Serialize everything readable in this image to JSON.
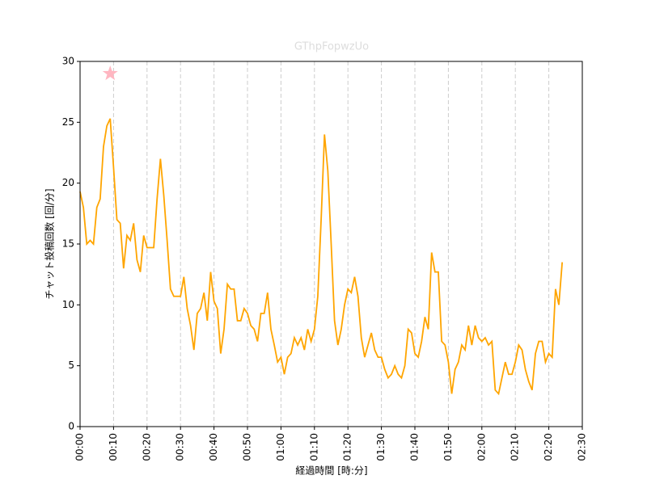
{
  "chart_data": {
    "type": "line",
    "title": "GThpFopwzUo",
    "xlabel": "経過時間 [時:分]",
    "ylabel": "チャット投稿回数 [回/分]",
    "x": [
      0,
      1,
      2,
      3,
      4,
      5,
      6,
      7,
      8,
      9,
      10,
      11,
      12,
      13,
      14,
      15,
      16,
      17,
      18,
      19,
      20,
      21,
      22,
      23,
      24,
      25,
      26,
      27,
      28,
      29,
      30,
      31,
      32,
      33,
      34,
      35,
      36,
      37,
      38,
      39,
      40,
      41,
      42,
      43,
      44,
      45,
      46,
      47,
      48,
      49,
      50,
      51,
      52,
      53,
      54,
      55,
      56,
      57,
      58,
      59,
      60,
      61,
      62,
      63,
      64,
      65,
      66,
      67,
      68,
      69,
      70,
      71,
      72,
      73,
      74,
      75,
      76,
      77,
      78,
      79,
      80,
      81,
      82,
      83,
      84,
      85,
      86,
      87,
      88,
      89,
      90,
      91,
      92,
      93,
      94,
      95,
      96,
      97,
      98,
      99,
      100,
      101,
      102,
      103,
      104,
      105,
      106,
      107,
      108,
      109,
      110,
      111,
      112,
      113,
      114,
      115,
      116,
      117,
      118,
      119,
      120,
      121,
      122,
      123,
      124,
      125,
      126,
      127,
      128,
      129,
      130,
      131,
      132,
      133,
      134,
      135,
      136,
      137,
      138,
      139,
      140,
      141,
      142,
      143,
      144
    ],
    "series": [
      {
        "name": "チャット投稿回数",
        "color": "#ffa500",
        "values": [
          19.3,
          18,
          15,
          15.3,
          15,
          18,
          18.7,
          23,
          24.7,
          25.3,
          21.3,
          17,
          16.7,
          13,
          15.7,
          15.3,
          16.7,
          13.7,
          12.7,
          15.7,
          14.7,
          14.7,
          14.7,
          18.7,
          22,
          19,
          15.3,
          11.3,
          10.7,
          10.7,
          10.7,
          12.3,
          9.7,
          8.3,
          6.3,
          9.3,
          9.7,
          11,
          8.7,
          12.7,
          10.3,
          9.7,
          6,
          8,
          11.7,
          11.3,
          11.3,
          8.7,
          8.7,
          9.7,
          9.3,
          8.3,
          8,
          7,
          9.3,
          9.3,
          11,
          8,
          6.7,
          5.3,
          5.7,
          4.3,
          5.7,
          6,
          7.3,
          6.7,
          7.3,
          6.3,
          8,
          7,
          8,
          10.7,
          17,
          24,
          21,
          15,
          8.7,
          6.7,
          8,
          10,
          11.3,
          11,
          12.3,
          10.7,
          7.3,
          5.7,
          6.7,
          7.7,
          6.3,
          5.7,
          5.7,
          4.7,
          4,
          4.3,
          5,
          4.3,
          4,
          5,
          8,
          7.7,
          6,
          5.7,
          7,
          9,
          8,
          14.3,
          12.7,
          12.7,
          7,
          6.7,
          5.3,
          2.7,
          4.7,
          5.3,
          6.7,
          6.3,
          8.3,
          6.7,
          8.3,
          7.3,
          7,
          7.3,
          6.7,
          7,
          3,
          2.7,
          4,
          5.3,
          4.3,
          4.3,
          5.3,
          6.7,
          6.3,
          4.7,
          3.7,
          3,
          6,
          7,
          7,
          5.3,
          6,
          5.7,
          11.3,
          10,
          13.5
        ]
      }
    ],
    "marker": {
      "x": 9,
      "y": 29,
      "color": "#ffb6c1"
    },
    "xlim": [
      0,
      150
    ],
    "xticks": [
      {
        "value": 0,
        "label": "00:00"
      },
      {
        "value": 10,
        "label": "00:10"
      },
      {
        "value": 20,
        "label": "00:20"
      },
      {
        "value": 30,
        "label": "00:30"
      },
      {
        "value": 40,
        "label": "00:40"
      },
      {
        "value": 50,
        "label": "00:50"
      },
      {
        "value": 60,
        "label": "01:00"
      },
      {
        "value": 70,
        "label": "01:10"
      },
      {
        "value": 80,
        "label": "01:20"
      },
      {
        "value": 90,
        "label": "01:30"
      },
      {
        "value": 100,
        "label": "01:40"
      },
      {
        "value": 110,
        "label": "01:50"
      },
      {
        "value": 120,
        "label": "02:00"
      },
      {
        "value": 130,
        "label": "02:10"
      },
      {
        "value": 140,
        "label": "02:20"
      },
      {
        "value": 150,
        "label": "02:30"
      }
    ],
    "ylim": [
      0,
      30
    ],
    "yticks": [
      0,
      5,
      10,
      15,
      20,
      25,
      30
    ],
    "grid": "x"
  }
}
